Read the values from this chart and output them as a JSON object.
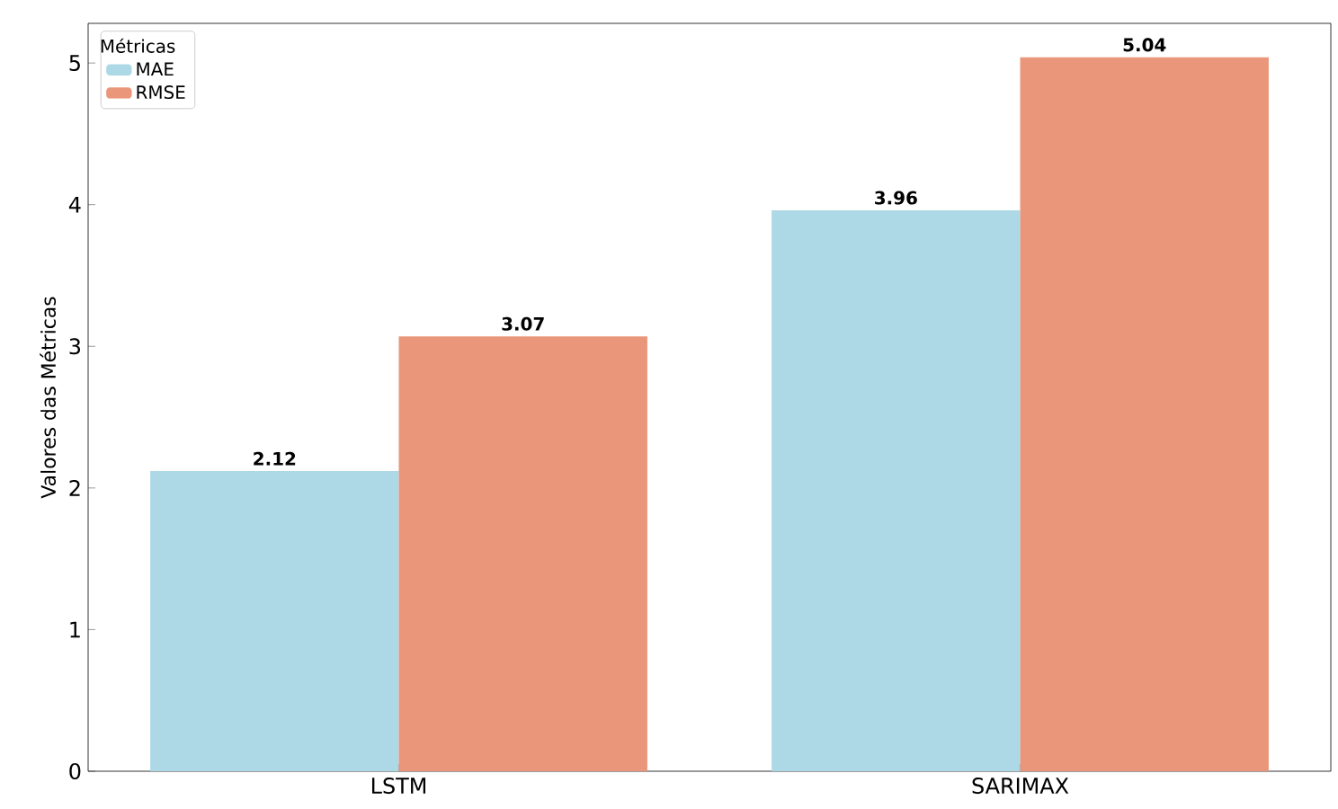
{
  "chart_data": {
    "type": "bar",
    "ylabel": "Valores das Métricas",
    "legend_title": "Métricas",
    "categories": [
      "LSTM",
      "SARIMAX"
    ],
    "series": [
      {
        "name": "MAE",
        "color": "#add8e6",
        "values": [
          2.12,
          3.96
        ]
      },
      {
        "name": "RMSE",
        "color": "#e9967a",
        "values": [
          3.07,
          5.04
        ]
      }
    ],
    "ylim": [
      0,
      5.28
    ],
    "yticks": [
      0,
      1,
      2,
      3,
      4,
      5
    ],
    "data_labels": true,
    "legend": "top left",
    "grid": false
  }
}
